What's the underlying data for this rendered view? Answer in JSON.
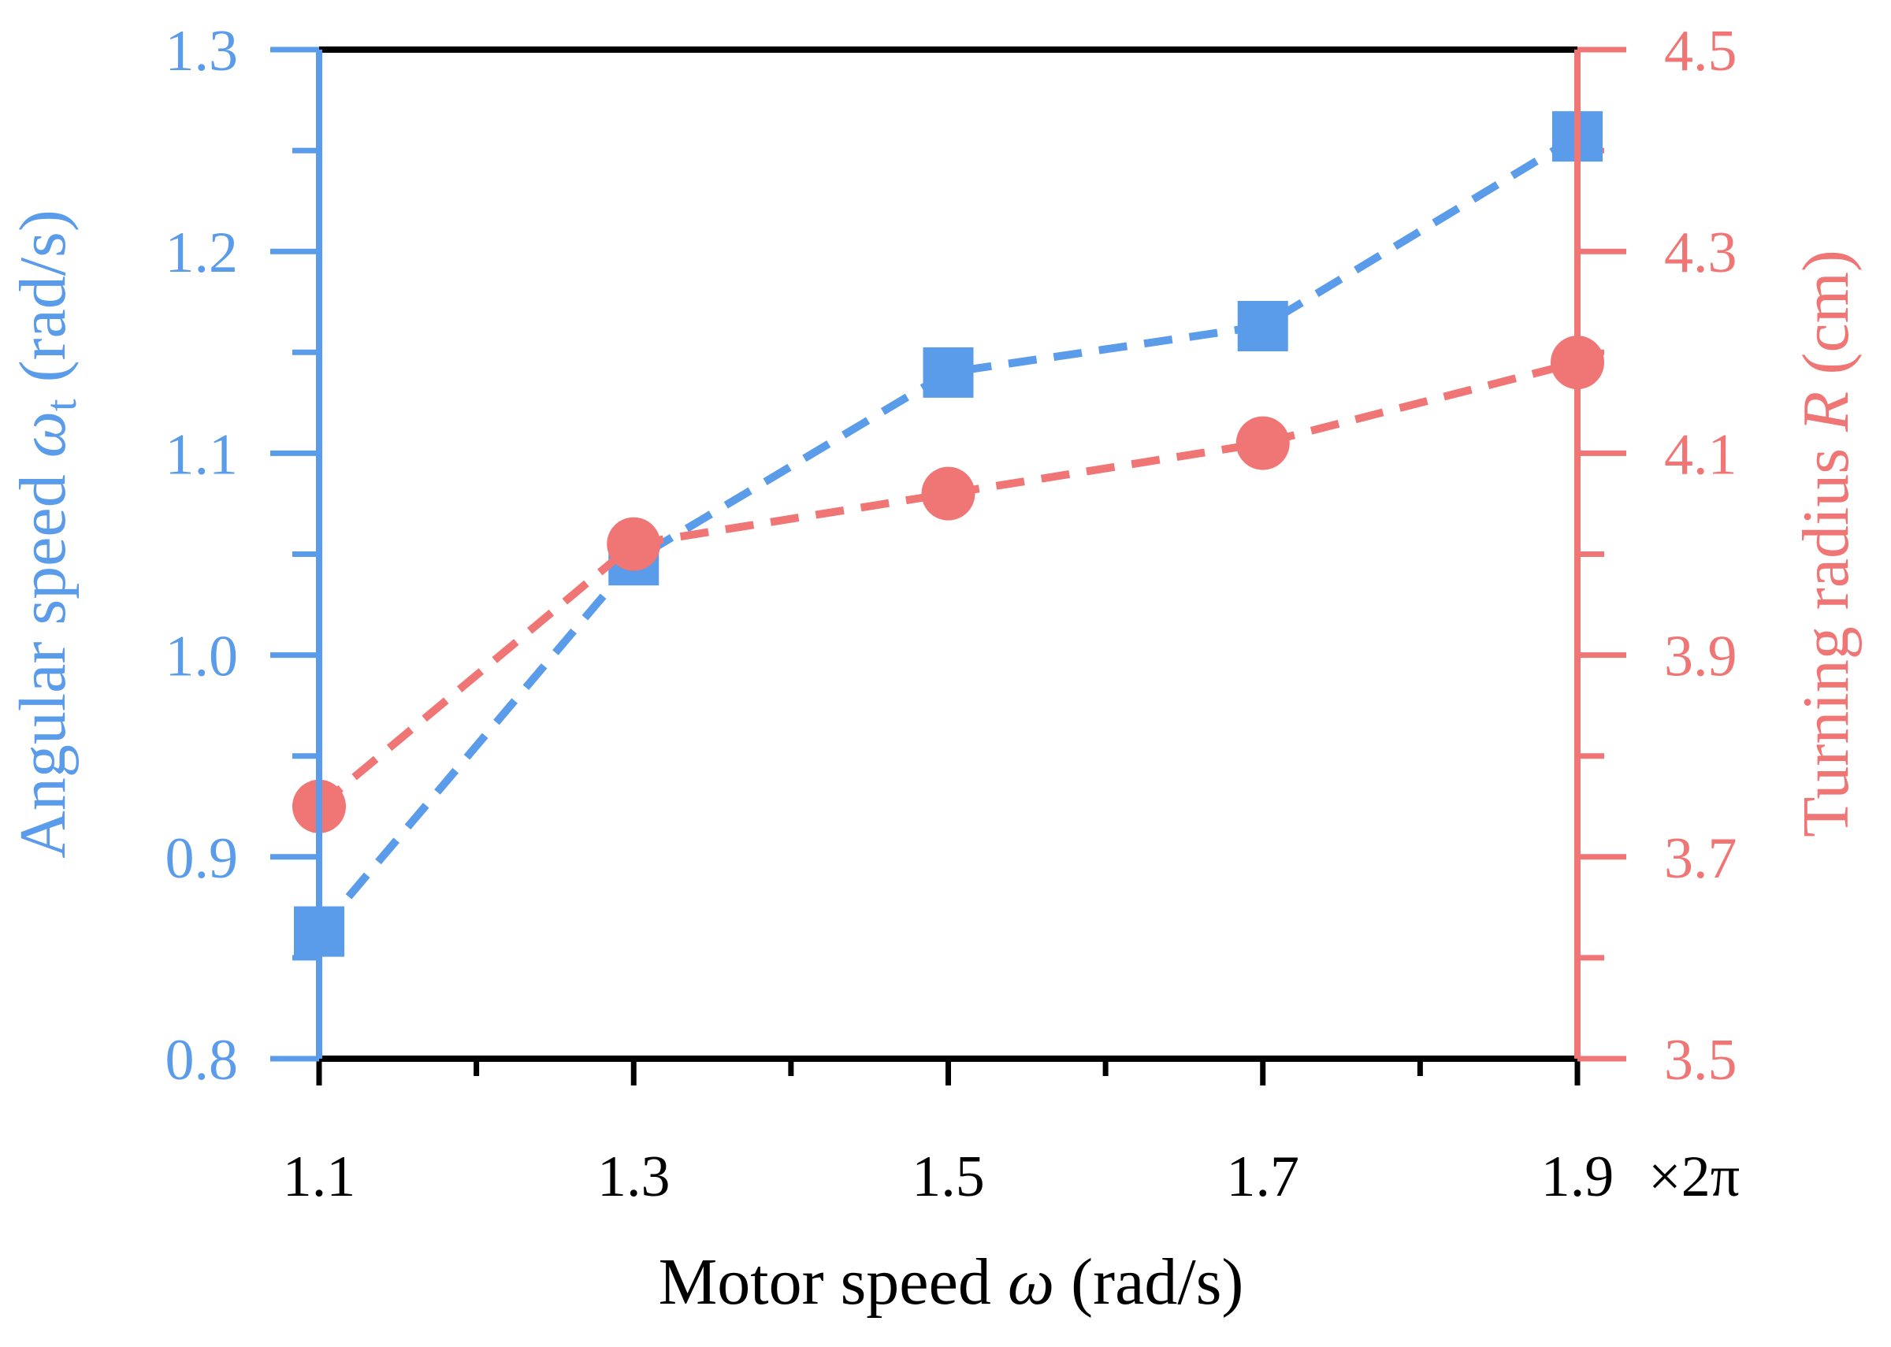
{
  "colors": {
    "left_series": "#5b9cea",
    "right_series": "#f07575",
    "frame": "#000000",
    "background": "#ffffff"
  },
  "chart_data": {
    "type": "line",
    "title": "",
    "x": [
      1.1,
      1.3,
      1.5,
      1.7,
      1.9
    ],
    "x_ticks": [
      "1.1",
      "1.3",
      "1.5",
      "1.7",
      "1.9"
    ],
    "x_minor_ticks": [
      1.2,
      1.4,
      1.6,
      1.8
    ],
    "x_multiplier": "×2π",
    "xlabel": {
      "prefix": "Motor speed ",
      "symbol": "ω",
      "suffix": " (rad/s)"
    },
    "xlim": [
      1.1,
      1.9
    ],
    "y_left": {
      "label": {
        "prefix": "Angular speed ",
        "symbol": "ω",
        "subscript": "t",
        "suffix": " (rad/s)"
      },
      "ylim": [
        0.8,
        1.3
      ],
      "ticks": [
        "0.8",
        "0.9",
        "1.0",
        "1.1",
        "1.2",
        "1.3"
      ],
      "tick_values": [
        0.8,
        0.9,
        1.0,
        1.1,
        1.2,
        1.3
      ],
      "minor_tick_values": [
        0.85,
        0.95,
        1.05,
        1.15,
        1.25
      ]
    },
    "y_right": {
      "label": {
        "prefix": "Turning radius ",
        "symbol": "R",
        "suffix": " (cm)"
      },
      "ylim": [
        3.5,
        4.5
      ],
      "ticks": [
        "3.5",
        "3.7",
        "3.9",
        "4.1",
        "4.3",
        "4.5"
      ],
      "tick_values": [
        3.5,
        3.7,
        3.9,
        4.1,
        4.3,
        4.5
      ],
      "minor_tick_values": [
        3.6,
        3.8,
        4.0,
        4.2,
        4.4
      ]
    },
    "series": [
      {
        "name": "Angular speed ωt",
        "axis": "left",
        "marker": "square",
        "linestyle": "dashed",
        "values": [
          0.863,
          1.047,
          1.14,
          1.163,
          1.257
        ]
      },
      {
        "name": "Turning radius R",
        "axis": "right",
        "marker": "circle",
        "linestyle": "dashed",
        "values": [
          3.75,
          4.01,
          4.06,
          4.11,
          4.19
        ]
      }
    ],
    "grid": false,
    "legend": "none"
  }
}
